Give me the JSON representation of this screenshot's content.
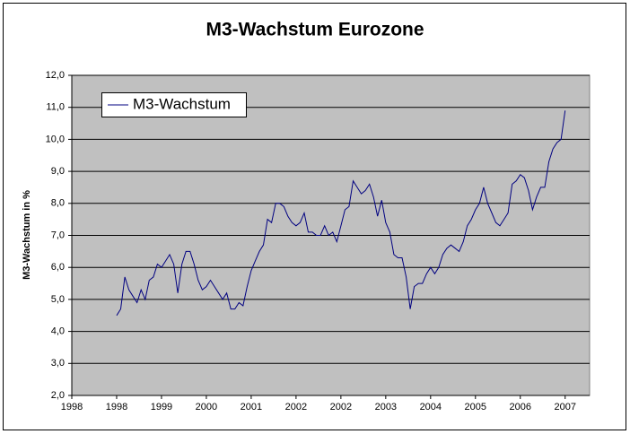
{
  "chart_data": {
    "type": "line",
    "title": "M3-Wachstum Eurozone",
    "ylabel": "M3-Wachstum in %",
    "x": [
      0,
      1,
      2,
      3,
      4,
      5,
      6,
      7,
      8,
      9,
      10,
      11,
      12,
      13,
      14,
      15,
      16,
      17,
      18,
      19,
      20,
      21,
      22,
      23,
      24,
      25,
      26,
      27,
      28,
      29,
      30,
      31,
      32,
      33,
      34,
      35,
      36,
      37,
      38,
      39,
      40,
      41,
      42,
      43,
      44,
      45,
      46,
      47,
      48,
      49,
      50,
      51,
      52,
      53,
      54,
      55,
      56,
      57,
      58,
      59,
      60,
      61,
      62,
      63,
      64,
      65,
      66,
      67,
      68,
      69,
      70,
      71,
      72,
      73,
      74,
      75,
      76,
      77,
      78,
      79,
      80,
      81,
      82,
      83,
      84,
      85,
      86,
      87,
      88,
      89,
      90,
      91,
      92,
      93,
      94,
      95,
      96,
      97,
      98,
      99,
      100,
      101,
      102,
      103,
      104,
      105,
      106,
      107,
      108,
      109,
      110
    ],
    "series": [
      {
        "name": "M3-Wachstum",
        "color": "#000080",
        "values": [
          4.5,
          4.7,
          5.7,
          5.3,
          5.1,
          4.9,
          5.3,
          5.0,
          5.6,
          5.7,
          6.1,
          6.0,
          6.2,
          6.4,
          6.1,
          5.2,
          6.1,
          6.5,
          6.5,
          6.1,
          5.6,
          5.3,
          5.4,
          5.6,
          5.4,
          5.2,
          5.0,
          5.2,
          4.7,
          4.7,
          4.9,
          4.8,
          5.4,
          5.9,
          6.2,
          6.5,
          6.7,
          7.5,
          7.4,
          8.0,
          8.0,
          7.9,
          7.6,
          7.4,
          7.3,
          7.4,
          7.7,
          7.1,
          7.1,
          7.0,
          7.0,
          7.3,
          7.0,
          7.1,
          6.8,
          7.3,
          7.8,
          7.9,
          8.7,
          8.5,
          8.3,
          8.4,
          8.6,
          8.2,
          7.6,
          8.1,
          7.4,
          7.1,
          6.4,
          6.3,
          6.3,
          5.7,
          4.7,
          5.4,
          5.5,
          5.5,
          5.8,
          6.0,
          5.8,
          6.0,
          6.4,
          6.6,
          6.7,
          6.6,
          6.5,
          6.8,
          7.3,
          7.5,
          7.8,
          8.0,
          8.5,
          8.0,
          7.7,
          7.4,
          7.3,
          7.5,
          7.7,
          8.6,
          8.7,
          8.9,
          8.8,
          8.4,
          7.8,
          8.2,
          8.5,
          8.5,
          9.3,
          9.7,
          9.9,
          10.0,
          10.9
        ]
      }
    ],
    "xlim": [
      -11,
      116
    ],
    "xticks": [
      {
        "value": -11,
        "label": "1998"
      },
      {
        "value": 0,
        "label": "1998"
      },
      {
        "value": 11,
        "label": "1999"
      },
      {
        "value": 22,
        "label": "2000"
      },
      {
        "value": 33,
        "label": "2001"
      },
      {
        "value": 44,
        "label": "2002"
      },
      {
        "value": 55,
        "label": "2002"
      },
      {
        "value": 66,
        "label": "2003"
      },
      {
        "value": 77,
        "label": "2004"
      },
      {
        "value": 88,
        "label": "2005"
      },
      {
        "value": 99,
        "label": "2006"
      },
      {
        "value": 110,
        "label": "2007"
      }
    ],
    "ylim": [
      2,
      12
    ],
    "yticks": [
      {
        "value": 2,
        "label": "2,0"
      },
      {
        "value": 3,
        "label": "3,0"
      },
      {
        "value": 4,
        "label": "4,0"
      },
      {
        "value": 5,
        "label": "5,0"
      },
      {
        "value": 6,
        "label": "6,0"
      },
      {
        "value": 7,
        "label": "7,0"
      },
      {
        "value": 8,
        "label": "8,0"
      },
      {
        "value": 9,
        "label": "9,0"
      },
      {
        "value": 10,
        "label": "10,0"
      },
      {
        "value": 11,
        "label": "11,0"
      },
      {
        "value": 12,
        "label": "12,0"
      }
    ],
    "grid": true,
    "legend": "upper left"
  }
}
